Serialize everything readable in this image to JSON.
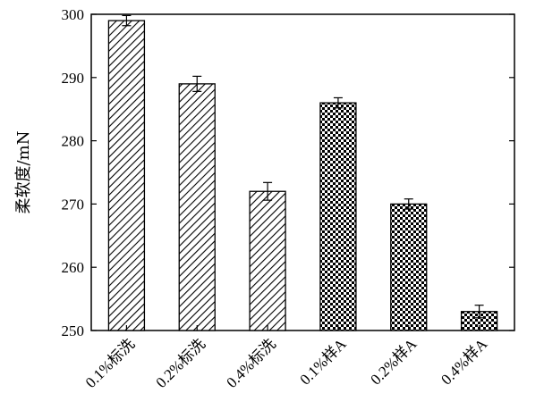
{
  "chart_data": {
    "type": "bar",
    "title": "",
    "xlabel": "",
    "ylabel": "柔软度/mN",
    "ylim": [
      250,
      300
    ],
    "yticks": [
      250,
      260,
      270,
      280,
      290,
      300
    ],
    "grid": false,
    "categories": [
      "0.1%标洗",
      "0.2%标洗",
      "0.4%标洗",
      "0.1%样A",
      "0.2%样A",
      "0.4%样A"
    ],
    "values": [
      299,
      289,
      272,
      286,
      270,
      253
    ],
    "errors": [
      0.8,
      1.2,
      1.4,
      0.8,
      0.8,
      1.0
    ],
    "patterns": [
      "diagonal-hatch",
      "diagonal-hatch",
      "diagonal-hatch",
      "checker",
      "checker",
      "checker"
    ],
    "colors": {
      "bar_fill": "#ffffff",
      "bar_edge": "#000000",
      "axis": "#000000"
    }
  }
}
